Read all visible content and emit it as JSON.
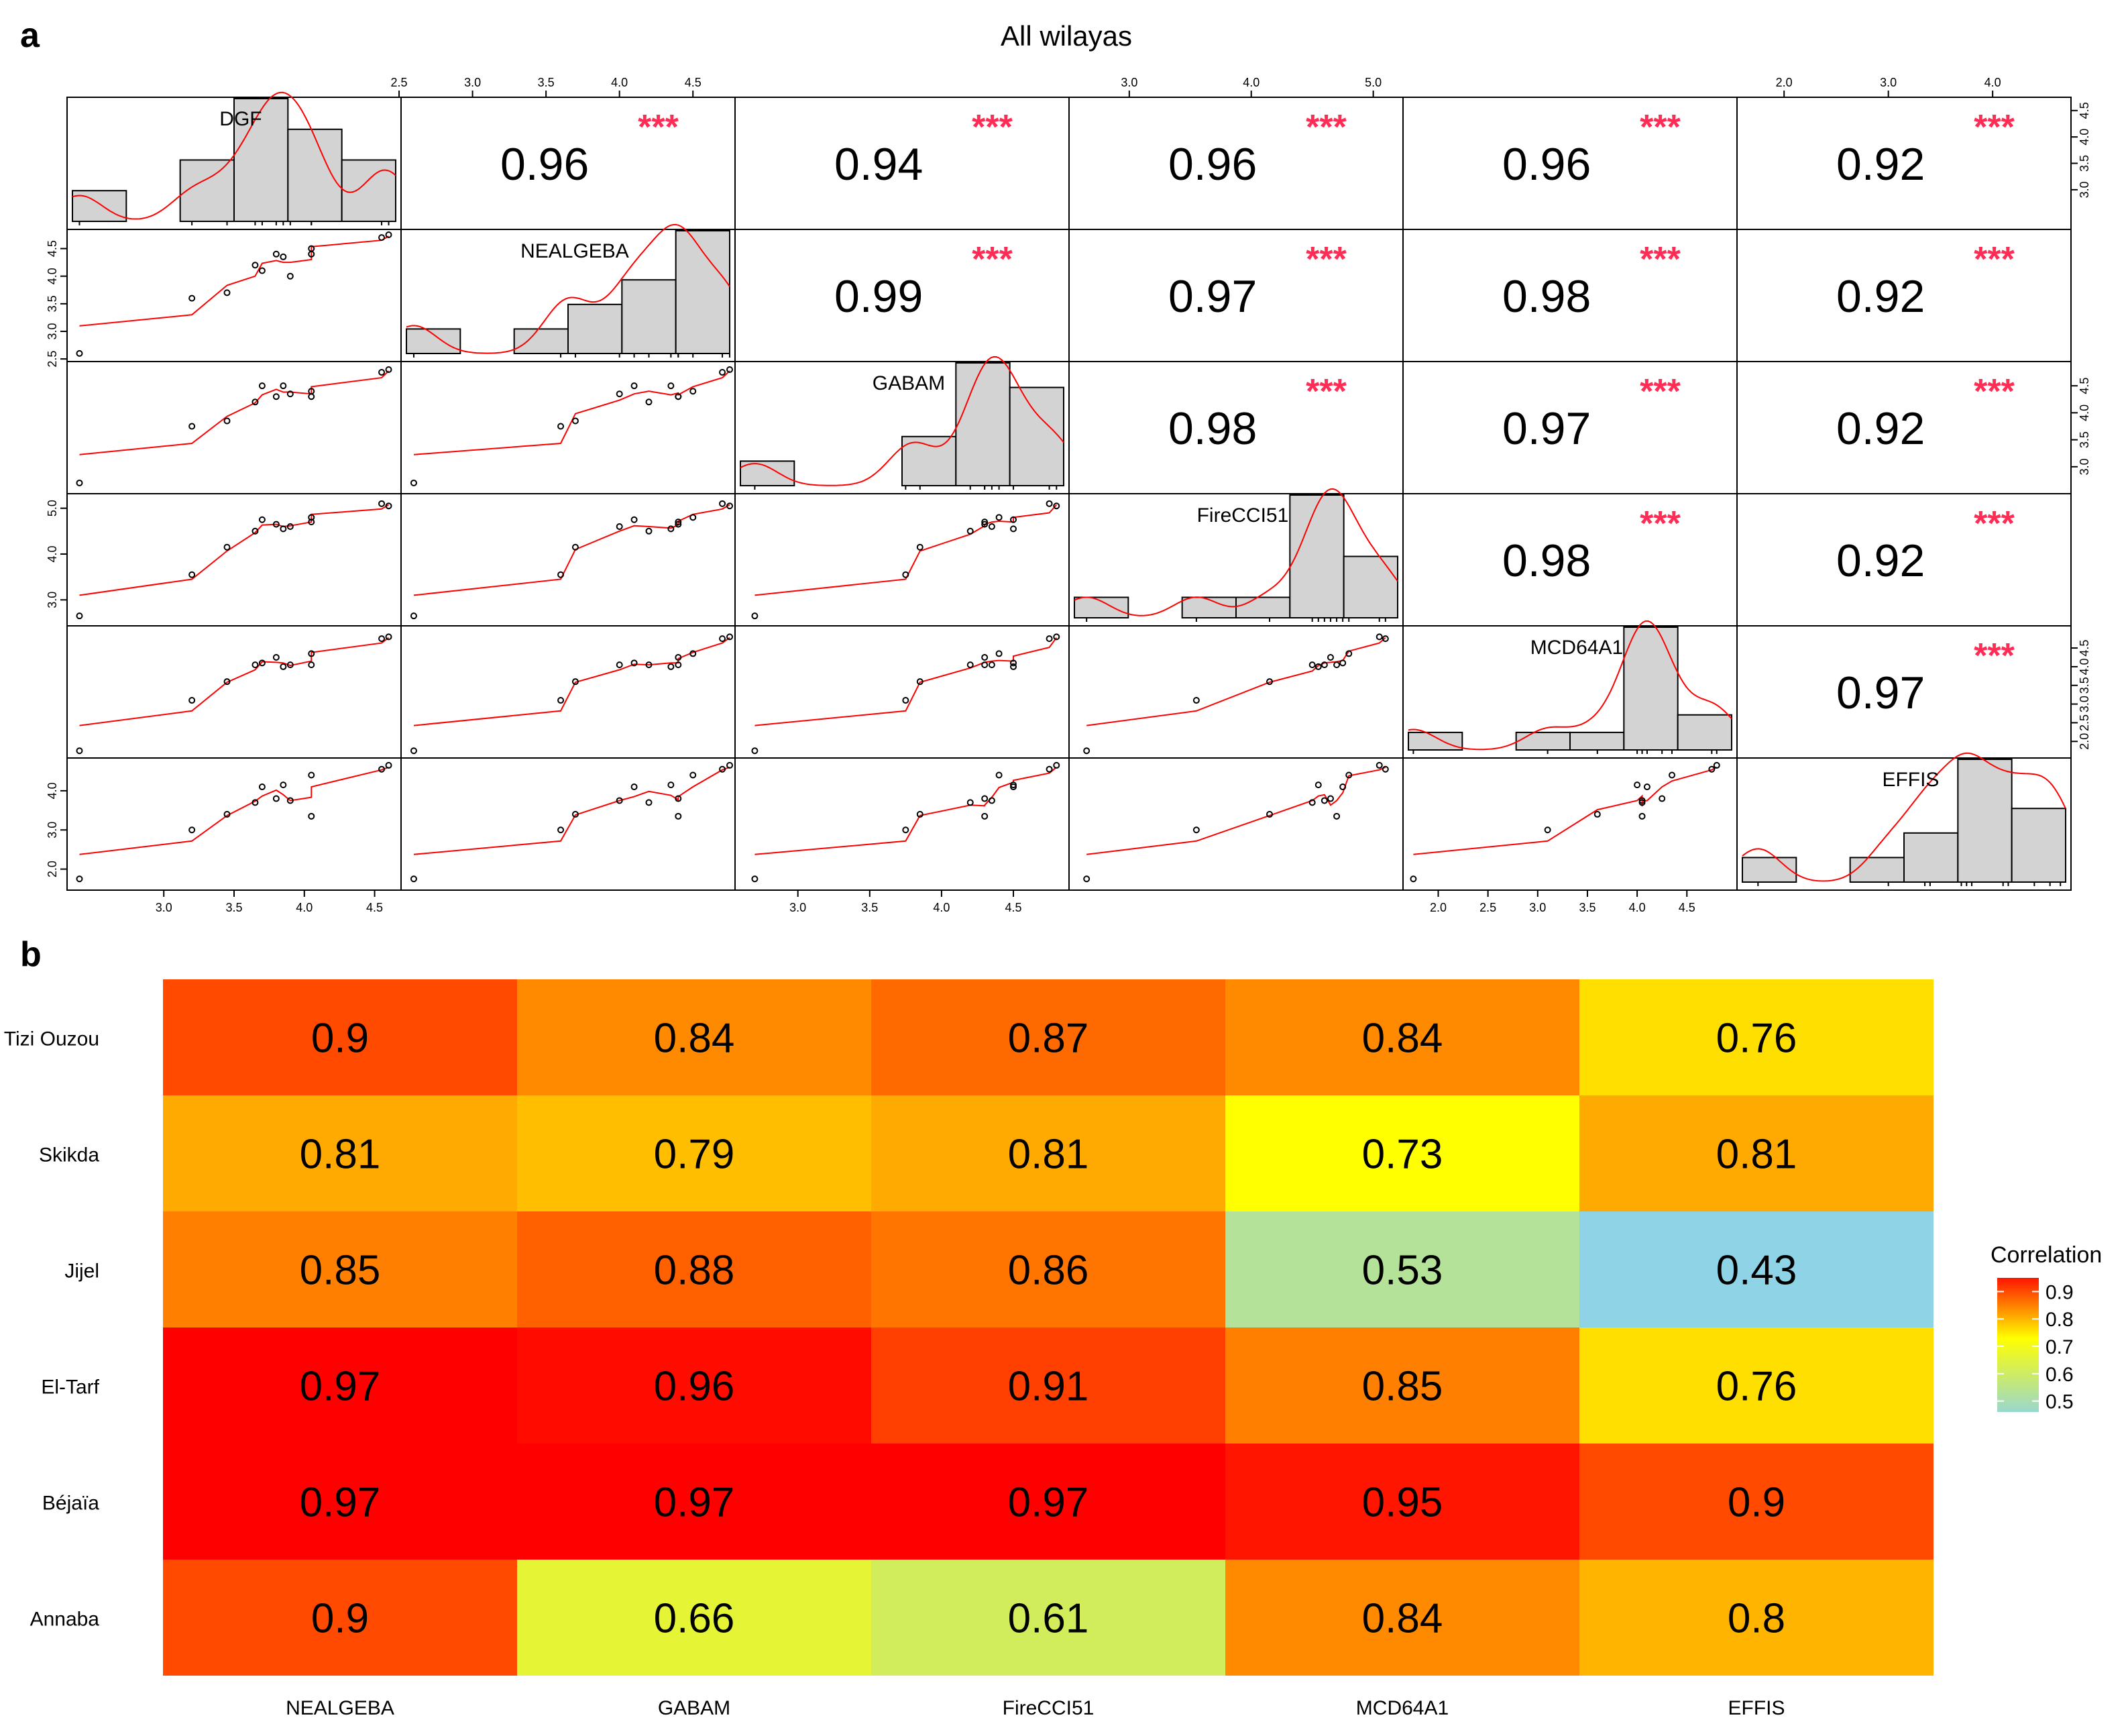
{
  "panel_a": {
    "letter": "a",
    "title": "All wilayas",
    "significance": "***"
  },
  "panel_b": {
    "letter": "b",
    "legend_title": "Correlation"
  },
  "colors": {
    "hist_fill": "#d3d3d3",
    "density_line": "#ff0000",
    "stars": "#ff2d55",
    "low": "#8fd3e6",
    "mid": "#ffff00",
    "high": "#ff0000"
  },
  "chart_data": [
    {
      "type": "scatter",
      "subtype": "scatterplot-matrix",
      "variables": [
        "DGF",
        "NEALGEBA",
        "GABAM",
        "FireCCI51",
        "MCD64A1",
        "EFFIS"
      ],
      "axis_ranges": {
        "DGF": [
          2.35,
          4.65
        ],
        "NEALGEBA": [
          2.55,
          4.75
        ],
        "GABAM": [
          2.6,
          4.85
        ],
        "FireCCI51": [
          2.55,
          5.2
        ],
        "MCD64A1": [
          1.7,
          4.95
        ],
        "EFFIS": [
          1.6,
          4.7
        ]
      },
      "axis_ticks": {
        "DGF": [
          "3.0",
          "3.5",
          "4.0",
          "4.5"
        ],
        "NEALGEBA": [
          "2.5",
          "3.0",
          "3.5",
          "4.0",
          "4.5"
        ],
        "GABAM": [
          "3.0",
          "3.5",
          "4.0",
          "4.5"
        ],
        "FireCCI51": [
          "3.0",
          "4.0",
          "5.0"
        ],
        "MCD64A1": [
          "2.0",
          "2.5",
          "3.0",
          "3.5",
          "4.0",
          "4.5"
        ],
        "EFFIS": [
          "2.0",
          "3.0",
          "4.0"
        ]
      },
      "observations": {
        "DGF": [
          2.4,
          3.2,
          3.45,
          3.65,
          3.7,
          3.8,
          3.85,
          3.9,
          4.05,
          4.05,
          4.55,
          4.6
        ],
        "NEALGEBA": [
          2.6,
          3.6,
          3.7,
          4.2,
          4.1,
          4.4,
          4.35,
          4.0,
          4.4,
          4.5,
          4.7,
          4.75
        ],
        "GABAM": [
          2.7,
          3.75,
          3.85,
          4.2,
          4.5,
          4.3,
          4.5,
          4.35,
          4.3,
          4.4,
          4.75,
          4.8
        ],
        "FireCCI51": [
          2.65,
          3.55,
          4.15,
          4.5,
          4.75,
          4.65,
          4.55,
          4.6,
          4.7,
          4.8,
          5.1,
          5.05
        ],
        "MCD64A1": [
          1.75,
          3.1,
          3.6,
          4.05,
          4.1,
          4.25,
          4.0,
          4.05,
          4.05,
          4.35,
          4.75,
          4.8
        ],
        "EFFIS": [
          1.75,
          3.0,
          3.4,
          3.7,
          4.1,
          3.8,
          4.15,
          3.75,
          3.35,
          4.4,
          4.55,
          4.65
        ]
      },
      "correlations": {
        "DGF": {
          "NEALGEBA": 0.96,
          "GABAM": 0.94,
          "FireCCI51": 0.96,
          "MCD64A1": 0.96,
          "EFFIS": 0.92
        },
        "NEALGEBA": {
          "GABAM": 0.99,
          "FireCCI51": 0.97,
          "MCD64A1": 0.98,
          "EFFIS": 0.92
        },
        "GABAM": {
          "FireCCI51": 0.98,
          "MCD64A1": 0.97,
          "EFFIS": 0.92
        },
        "FireCCI51": {
          "MCD64A1": 0.98,
          "EFFIS": 0.92
        },
        "MCD64A1": {
          "EFFIS": 0.97
        }
      }
    },
    {
      "type": "heatmap",
      "x_categories": [
        "NEALGEBA",
        "GABAM",
        "FireCCI51",
        "MCD64A1",
        "EFFIS"
      ],
      "y_categories": [
        "Tizi Ouzou",
        "Skikda",
        "Jijel",
        "El-Tarf",
        "Béjaïa",
        "Annaba"
      ],
      "values": [
        [
          0.9,
          0.84,
          0.87,
          0.84,
          0.76
        ],
        [
          0.81,
          0.79,
          0.81,
          0.73,
          0.81
        ],
        [
          0.85,
          0.88,
          0.86,
          0.53,
          0.43
        ],
        [
          0.97,
          0.96,
          0.91,
          0.85,
          0.76
        ],
        [
          0.97,
          0.97,
          0.97,
          0.95,
          0.9
        ],
        [
          0.9,
          0.66,
          0.61,
          0.84,
          0.8
        ]
      ],
      "legend": {
        "title": "Correlation",
        "ticks": [
          "0.9",
          "0.8",
          "0.7",
          "0.6",
          "0.5"
        ]
      }
    }
  ]
}
